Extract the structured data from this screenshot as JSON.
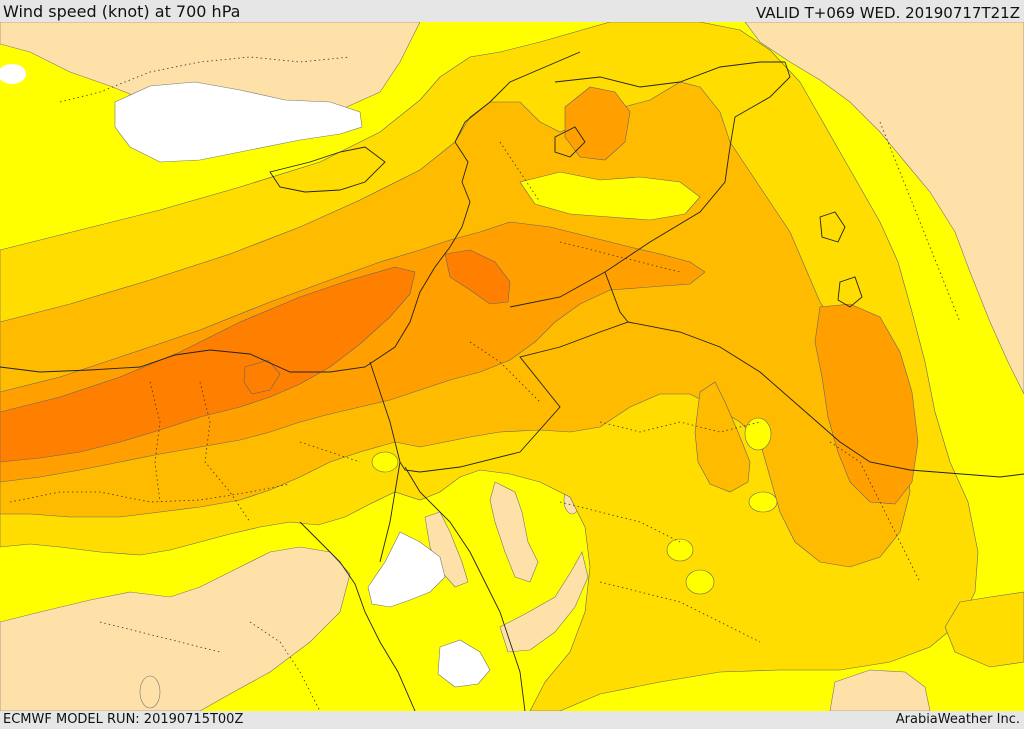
{
  "header": {
    "title": "Wind speed (knot) at 700 hPa",
    "valid": "VALID T+069 WED. 20190717T21Z"
  },
  "footer": {
    "model_run": "ECMWF MODEL RUN: 20190715T00Z",
    "credit": "ArabiaWeather Inc."
  },
  "colors": {
    "sea_calm": "#ffffff",
    "band_1": "#fde1a9",
    "band_2": "#ffff00",
    "band_3": "#ffdd00",
    "band_4": "#ffbb00",
    "band_5": "#ffa000",
    "band_6": "#ff7f00",
    "border_line": "#222222"
  }
}
